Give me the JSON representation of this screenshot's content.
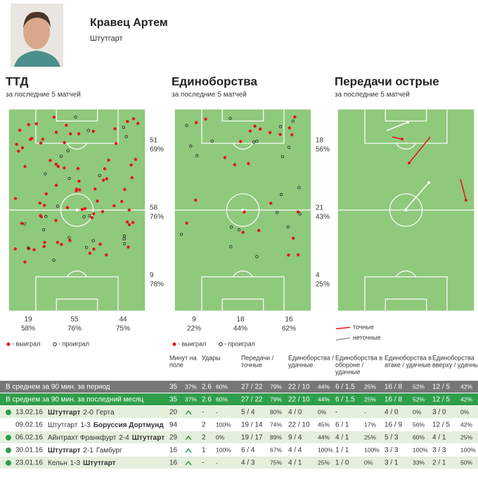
{
  "player": {
    "name": "Кравец Артем",
    "club": "Штутгарт"
  },
  "panels": [
    {
      "title": "ТТД",
      "subtitle": "за последние 5 матчей",
      "zones": [
        {
          "count": "51",
          "pct": "69%"
        },
        {
          "count": "58",
          "pct": "76%"
        },
        {
          "count": "9",
          "pct": "78%"
        }
      ],
      "columns": [
        {
          "count": "19",
          "pct": "58%"
        },
        {
          "count": "55",
          "pct": "76%"
        },
        {
          "count": "44",
          "pct": "75%"
        }
      ],
      "legend": [
        "- выиграл",
        "- проиграл"
      ]
    },
    {
      "title": "Единоборства",
      "subtitle": "за последние 5 матчей",
      "zones": [
        {
          "count": "18",
          "pct": "56%"
        },
        {
          "count": "21",
          "pct": "43%"
        },
        {
          "count": "4",
          "pct": "25%"
        }
      ],
      "columns": [
        {
          "count": "9",
          "pct": "22%"
        },
        {
          "count": "18",
          "pct": "44%"
        },
        {
          "count": "16",
          "pct": "62%"
        }
      ],
      "legend": [
        "- выиграл",
        "- проиграл"
      ]
    },
    {
      "title": "Передачи острые",
      "subtitle": "за последние 5 матчей",
      "legend": [
        "точные",
        "неточные"
      ]
    }
  ],
  "table": {
    "headers": [
      [
        "Минут на",
        "поле"
      ],
      [
        "Удары"
      ],
      [
        "Передачи /",
        "точные"
      ],
      [
        "Единоборства /",
        "удачные"
      ],
      [
        "Единоборства в",
        "обороне /",
        "удачные"
      ],
      [
        "Единоборства в",
        "атаке / удачные"
      ],
      [
        "Единоборства",
        "вверху / удачные"
      ]
    ],
    "averages": [
      {
        "label": "В среднем за 90 мин. за период",
        "cells": [
          [
            "35",
            "37%"
          ],
          [
            "2.6",
            "60%"
          ],
          [
            "27 / 22",
            "79%"
          ],
          [
            "22 / 10",
            "44%"
          ],
          [
            "6 / 1.5",
            "25%"
          ],
          [
            "16 / 8",
            "52%"
          ],
          [
            "12 / 5",
            "42%"
          ]
        ]
      },
      {
        "label": "В среднем за 90 мин. за последний месяц",
        "cells": [
          [
            "35",
            "37%"
          ],
          [
            "2.6",
            "60%"
          ],
          [
            "27 / 22",
            "79%"
          ],
          [
            "22 / 10",
            "44%"
          ],
          [
            "6 / 1.5",
            "25%"
          ],
          [
            "16 / 8",
            "52%"
          ],
          [
            "12 / 5",
            "42%"
          ]
        ]
      }
    ],
    "matches": [
      {
        "date": "13.02.16",
        "home": "Штутгарт",
        "score": "2-0",
        "away": "Герта",
        "bold": "home",
        "dot": true,
        "sub_in": true,
        "cells": [
          [
            "20"
          ],
          [
            "-",
            "-"
          ],
          [
            "5 / 4",
            "80%"
          ],
          [
            "4 / 0",
            "0%"
          ],
          [
            "-",
            "-"
          ],
          [
            "4 / 0",
            "0%"
          ],
          [
            "3 / 0",
            "0%"
          ]
        ]
      },
      {
        "date": "09.02.16",
        "home": "Штутгарт",
        "score": "1-3",
        "away": "Боруссия Дортмунд",
        "bold": "away",
        "dot": false,
        "sub_in": false,
        "cells": [
          [
            "94"
          ],
          [
            "2",
            "100%"
          ],
          [
            "19 / 14",
            "74%"
          ],
          [
            "22 / 10",
            "45%"
          ],
          [
            "6 / 1",
            "17%"
          ],
          [
            "16 / 9",
            "56%"
          ],
          [
            "12 / 5",
            "42%"
          ]
        ]
      },
      {
        "date": "06.02.16",
        "home": "Айнтрахт Франкфурт",
        "score": "2-4",
        "away": "Штутгарт",
        "bold": "away",
        "dot": true,
        "sub_in": true,
        "cells": [
          [
            "29"
          ],
          [
            "2",
            "0%"
          ],
          [
            "19 / 17",
            "89%"
          ],
          [
            "9 / 4",
            "44%"
          ],
          [
            "4 / 1",
            "25%"
          ],
          [
            "5 / 3",
            "60%"
          ],
          [
            "4 / 1",
            "25%"
          ]
        ]
      },
      {
        "date": "30.01.16",
        "home": "Штутгарт",
        "score": "2-1",
        "away": "Гамбург",
        "bold": "home",
        "dot": true,
        "sub_in": true,
        "cells": [
          [
            "16"
          ],
          [
            "1",
            "100%"
          ],
          [
            "6 / 4",
            "67%"
          ],
          [
            "4 / 4",
            "100%"
          ],
          [
            "1 / 1",
            "100%"
          ],
          [
            "3 / 3",
            "100%"
          ],
          [
            "3 / 3",
            "100%"
          ]
        ]
      },
      {
        "date": "23.01.16",
        "home": "Кельн",
        "score": "1-3",
        "away": "Штутгарт",
        "bold": "away",
        "dot": true,
        "sub_in": true,
        "cells": [
          [
            "16"
          ],
          [
            "-",
            "-"
          ],
          [
            "4 / 3",
            "75%"
          ],
          [
            "4 / 1",
            "25%"
          ],
          [
            "1 / 0",
            "0%"
          ],
          [
            "3 / 1",
            "33%"
          ],
          [
            "2 / 1",
            "50%"
          ]
        ]
      }
    ]
  }
}
